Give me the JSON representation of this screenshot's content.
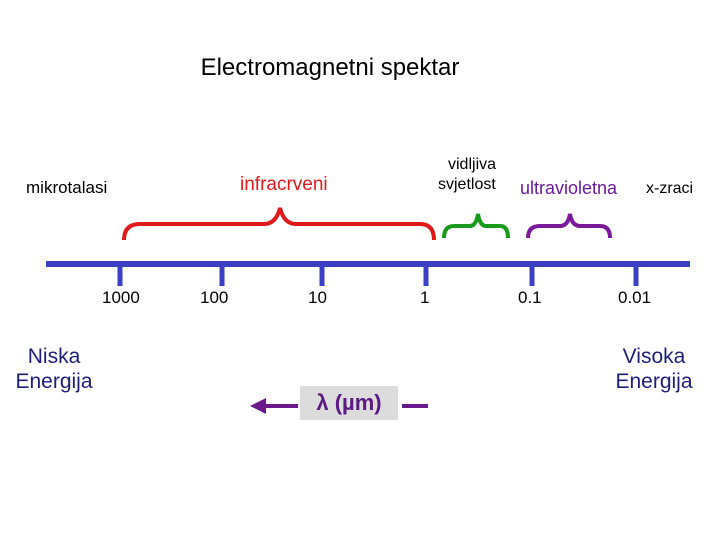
{
  "title": "Electromagnetni spektar",
  "regions": {
    "mikrotalasi": "mikrotalasi",
    "infracrveni": "infracrveni",
    "vidljiva_line1": "vidljiva",
    "vidljiva_line2": "svjetlost",
    "ultravioletna": "ultravioletna",
    "x_zraci": "x-zraci"
  },
  "ticks": [
    "1000",
    "100",
    "10",
    "1",
    "0.1",
    "0.01"
  ],
  "energy": {
    "low_line1": "Niska",
    "low_line2": "Energija",
    "high_line1": "Visoka",
    "high_line2": "Energija"
  },
  "axis_label": "λ (µm)",
  "colors": {
    "axis": "#3a3fc4",
    "infrared_brace": "#e01a1a",
    "visible_brace": "#1a9a1a",
    "uv_brace": "#7a1a9a",
    "arrow": "#6a1a8a",
    "infrared_text": "#e01a1a",
    "uv_text": "#6a1a9a"
  }
}
